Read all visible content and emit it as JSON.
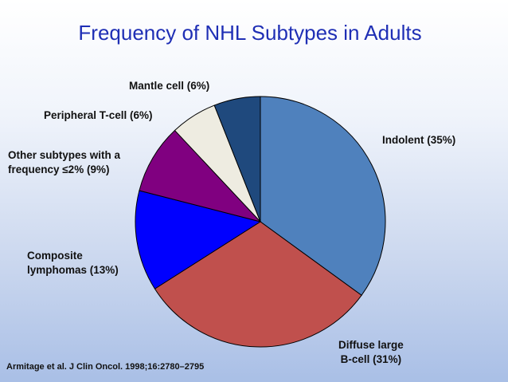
{
  "slide": {
    "source": "Armitage et al. J Clin Oncol. 1998;16:2780–2795"
  },
  "chart_data": {
    "type": "pie",
    "title": "Frequency of NHL Subtypes in Adults",
    "slices": [
      {
        "label": "Indolent (35%)",
        "value": 35,
        "color": "#4f81bd"
      },
      {
        "label": "Diffuse large\nB-cell (31%)",
        "value": 31,
        "color": "#c0504d"
      },
      {
        "label": "Composite\nlymphomas (13%)",
        "value": 13,
        "color": "#0000ff"
      },
      {
        "label": "Other subtypes with a\nfrequency ≤2% (9%)",
        "value": 9,
        "color": "#800080"
      },
      {
        "label": "Peripheral T-cell (6%)",
        "value": 6,
        "color": "#eeece1"
      },
      {
        "label": "Mantle cell (6%)",
        "value": 6,
        "color": "#1f497d"
      }
    ]
  }
}
